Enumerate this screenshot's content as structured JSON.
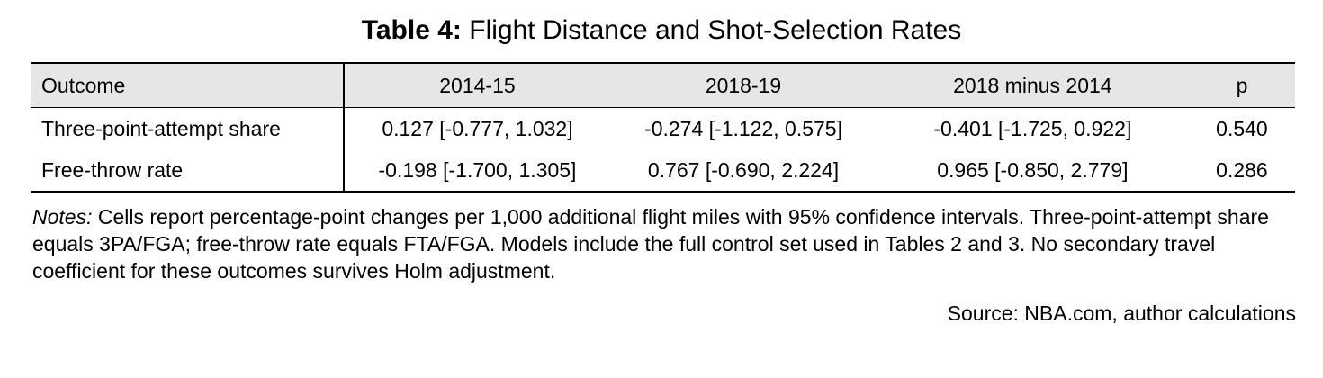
{
  "title": {
    "label": "Table 4:",
    "text": "Flight Distance and Shot-Selection Rates"
  },
  "table": {
    "headers": [
      "Outcome",
      "2014-15",
      "2018-19",
      "2018 minus 2014",
      "p"
    ],
    "rows": [
      [
        "Three-point-attempt share",
        "0.127 [-0.777, 1.032]",
        "-0.274 [-1.122, 0.575]",
        "-0.401 [-1.725, 0.922]",
        "0.540"
      ],
      [
        "Free-throw rate",
        "-0.198 [-1.700, 1.305]",
        "0.767 [-0.690, 2.224]",
        "0.965 [-0.850, 2.779]",
        "0.286"
      ]
    ]
  },
  "notes": {
    "label": "Notes:",
    "text": "Cells report percentage-point changes per 1,000 additional flight miles with 95% confidence intervals. Three-point-attempt share equals 3PA/FGA; free-throw rate equals FTA/FGA. Models include the full control set used in Tables 2 and 3. No secondary travel coefficient for these outcomes survives Holm adjustment."
  },
  "source": "Source: NBA.com, author calculations"
}
